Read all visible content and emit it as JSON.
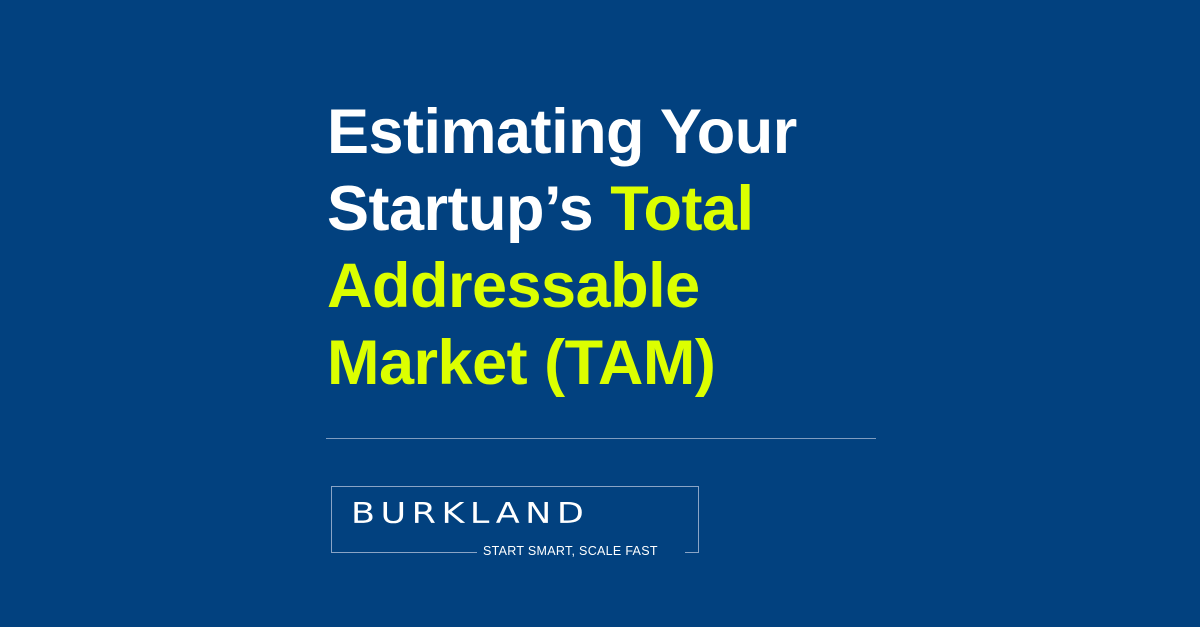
{
  "title": {
    "line1": "Estimating Your",
    "line2_white": "Startup’s ",
    "line2_highlight": "Total",
    "line3": "Addressable",
    "line4": "Market (TAM)"
  },
  "logo": {
    "brand": "BURKLAND",
    "tagline": "START SMART, SCALE FAST"
  },
  "colors": {
    "background": "#02417f",
    "highlight": "#dcff00",
    "text": "#ffffff"
  }
}
